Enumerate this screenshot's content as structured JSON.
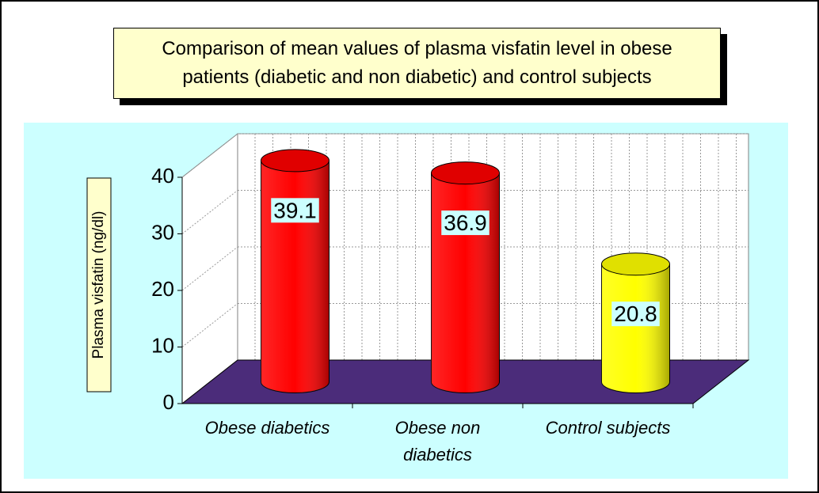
{
  "chart_data": {
    "type": "bar",
    "title": "Comparison of mean values of plasma visfatin level in obese patients (diabetic and non diabetic) and control subjects",
    "y_label": "Plasma visfatin (ng/dl)",
    "categories": [
      "Obese diabetics",
      "Obese non diabetics",
      "Control subjects"
    ],
    "values": [
      39.1,
      36.9,
      20.8
    ],
    "colors": [
      "#ff0000",
      "#ff0000",
      "#ffff00"
    ],
    "ylim": [
      0,
      40
    ],
    "yticks": [
      0,
      10,
      20,
      30,
      40
    ],
    "grid": true
  }
}
